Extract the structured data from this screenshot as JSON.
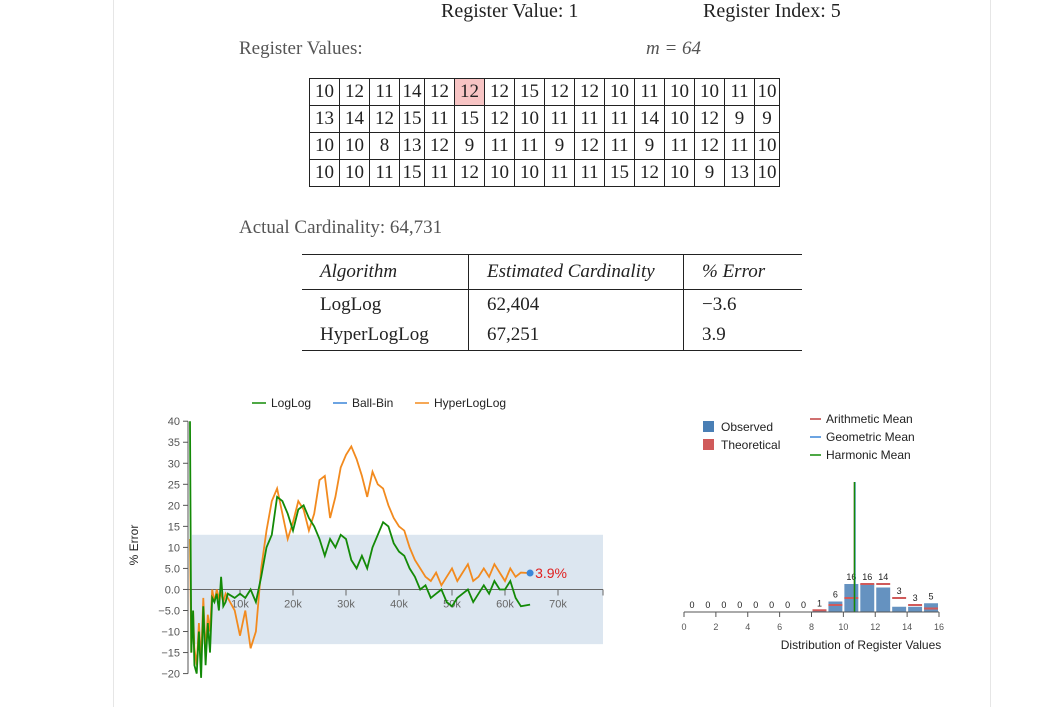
{
  "header": {
    "register_value": "Register Value: 1",
    "register_index": "Register Index: 5"
  },
  "registers": {
    "label": "Register Values:",
    "m_label": "m = 64",
    "highlight_index": 5,
    "rows": [
      [
        "10",
        "12",
        "11",
        "14",
        "12",
        "12",
        "12",
        "15",
        "12",
        "12",
        "10",
        "11",
        "10",
        "10",
        "11",
        "10"
      ],
      [
        "13",
        "14",
        "12",
        "15",
        "11",
        "15",
        "12",
        "10",
        "11",
        "11",
        "11",
        "14",
        "10",
        "12",
        "9",
        "9"
      ],
      [
        "10",
        "10",
        "8",
        "13",
        "12",
        "9",
        "11",
        "11",
        "9",
        "12",
        "11",
        "9",
        "11",
        "12",
        "11",
        "10"
      ],
      [
        "10",
        "10",
        "11",
        "15",
        "11",
        "12",
        "10",
        "10",
        "11",
        "11",
        "15",
        "12",
        "10",
        "9",
        "13",
        "10"
      ]
    ]
  },
  "actual": {
    "label": "Actual Cardinality: 64,731"
  },
  "results": {
    "headers": [
      "Algorithm",
      "Estimated Cardinality",
      "% Error"
    ],
    "rows": [
      [
        "LogLog",
        "62,404",
        "−3.6"
      ],
      [
        "HyperLogLog",
        "67,251",
        "3.9"
      ]
    ]
  },
  "colors": {
    "loglog": "#138a07",
    "ballbin": "#3a86d9",
    "hyperloglog": "#f28a1e",
    "band": "#dce6f0",
    "observed": "#4a7fb5",
    "theoretical": "#d05a5a",
    "highlight_cell": "#f7c4c4",
    "error_label": "#e02020"
  },
  "chart_data": [
    {
      "type": "line",
      "ylabel": "% Error",
      "xlim": [
        0,
        77000
      ],
      "ylim": [
        -22,
        41
      ],
      "x_ticks": [
        "10k",
        "20k",
        "30k",
        "40k",
        "50k",
        "60k",
        "70k"
      ],
      "x_tick_values": [
        10000,
        20000,
        30000,
        40000,
        50000,
        60000,
        70000
      ],
      "y_ticks": [
        "40",
        "35",
        "30",
        "25",
        "20",
        "15",
        "10",
        "5.0",
        "0.0",
        "−5.0",
        "−10",
        "−15",
        "−20"
      ],
      "y_tick_values": [
        40,
        35,
        30,
        25,
        20,
        15,
        10,
        5,
        0,
        -5,
        -10,
        -15,
        -20
      ],
      "band": [
        -13,
        13
      ],
      "legend": [
        "LogLog",
        "Ball-Bin",
        "HyperLogLog"
      ],
      "end_label": "3.9%",
      "series": [
        {
          "name": "LogLog",
          "x": [
            0,
            300,
            700,
            1000,
            1500,
            2000,
            2500,
            3000,
            3500,
            4000,
            4500,
            5000,
            5500,
            6000,
            6500,
            7000,
            7500,
            8000,
            8500,
            9000,
            10000,
            11000,
            12000,
            13000,
            14000,
            15000,
            16000,
            17000,
            18000,
            19000,
            20000,
            21000,
            22000,
            23000,
            24000,
            25000,
            26000,
            27000,
            28000,
            29000,
            30000,
            31000,
            32000,
            33000,
            34000,
            35000,
            36000,
            37000,
            38000,
            39000,
            40000,
            41000,
            42000,
            43000,
            44000,
            45000,
            46000,
            47000,
            48000,
            49000,
            50000,
            51000,
            52000,
            53000,
            54000,
            55000,
            56000,
            57000,
            58000,
            59000,
            60000,
            61000,
            62000,
            63000,
            64731
          ],
          "y": [
            40,
            -15,
            -5,
            -18,
            -20,
            -10,
            -21,
            -4,
            -18,
            -8,
            -15,
            -2,
            -3,
            -1,
            -5,
            3,
            -4,
            -3,
            -1,
            -2,
            -1,
            -2,
            0,
            -3,
            3,
            10,
            13,
            22,
            21,
            18,
            14,
            19,
            20,
            17,
            15,
            12,
            8,
            12,
            10,
            13,
            12,
            7,
            5,
            8,
            5,
            10,
            13,
            16,
            15,
            11,
            9,
            8,
            5,
            3,
            0,
            1,
            -2,
            -1,
            0,
            -3,
            -4,
            -2,
            -1,
            0,
            -3,
            -1,
            1,
            -1,
            2,
            0,
            0,
            2,
            -2,
            -4,
            -3.6
          ]
        },
        {
          "name": "HyperLogLog",
          "x": [
            0,
            300,
            700,
            1000,
            1500,
            2000,
            2500,
            3000,
            3500,
            4000,
            4500,
            5000,
            5500,
            6000,
            6500,
            7000,
            7500,
            8000,
            8500,
            9000,
            10000,
            11000,
            12000,
            13000,
            14000,
            15000,
            16000,
            17000,
            18000,
            19000,
            20000,
            21000,
            22000,
            23000,
            24000,
            25000,
            26000,
            27000,
            28000,
            29000,
            30000,
            31000,
            32000,
            33000,
            34000,
            35000,
            36000,
            37000,
            38000,
            39000,
            40000,
            41000,
            42000,
            43000,
            44000,
            45000,
            46000,
            47000,
            48000,
            49000,
            50000,
            51000,
            52000,
            53000,
            54000,
            55000,
            56000,
            57000,
            58000,
            59000,
            60000,
            61000,
            62000,
            63000,
            64731
          ],
          "y": [
            12,
            -15,
            -5,
            -14,
            -18,
            -8,
            -17,
            -2,
            -15,
            -6,
            -10,
            0,
            -3,
            0,
            -2,
            -1,
            -3,
            -1,
            -2,
            -5,
            -11,
            -5,
            -14,
            -10,
            5,
            14,
            21,
            24,
            18,
            12,
            16,
            21,
            19,
            14,
            18,
            26,
            27,
            17,
            22,
            29,
            32,
            34,
            31,
            27,
            22,
            28,
            25,
            24,
            20,
            17,
            15,
            14,
            10,
            7,
            5,
            3,
            2,
            4,
            1,
            3,
            5,
            2,
            4,
            6,
            2,
            3,
            5,
            3,
            6,
            4,
            2,
            5,
            3,
            4,
            3.9
          ]
        }
      ]
    },
    {
      "type": "bar",
      "xlabel": "Distribution of Register Values",
      "xlim": [
        0,
        16
      ],
      "x_ticks": [
        "0",
        "2",
        "4",
        "6",
        "8",
        "10",
        "12",
        "14",
        "16"
      ],
      "x_tick_values": [
        0,
        2,
        4,
        6,
        8,
        10,
        12,
        14,
        16
      ],
      "legend": [
        "Observed",
        "Theoretical"
      ],
      "line_legend": [
        "Arithmetic Mean",
        "Geometric Mean",
        "Harmonic Mean"
      ],
      "means": {
        "arithmetic": 11.2,
        "geometric": 11.1,
        "harmonic": 10.95
      },
      "categories": [
        "0",
        "1",
        "2",
        "3",
        "4",
        "5",
        "6",
        "7",
        "8",
        "9",
        "10",
        "11",
        "12",
        "13",
        "14",
        "15"
      ],
      "observed": [
        0,
        0,
        0,
        0,
        0,
        0,
        0,
        0,
        1,
        6,
        16,
        16,
        14,
        3,
        3,
        5
      ],
      "theoretical": [
        0,
        0,
        0,
        0,
        0,
        0,
        0,
        0,
        1,
        4,
        8,
        16,
        16,
        8,
        4,
        2
      ],
      "bar_labels": [
        "0",
        "0",
        "0",
        "0",
        "0",
        "0",
        "0",
        "0",
        "1",
        "6",
        "16",
        "16",
        "14",
        "3",
        "3",
        "5"
      ]
    }
  ]
}
